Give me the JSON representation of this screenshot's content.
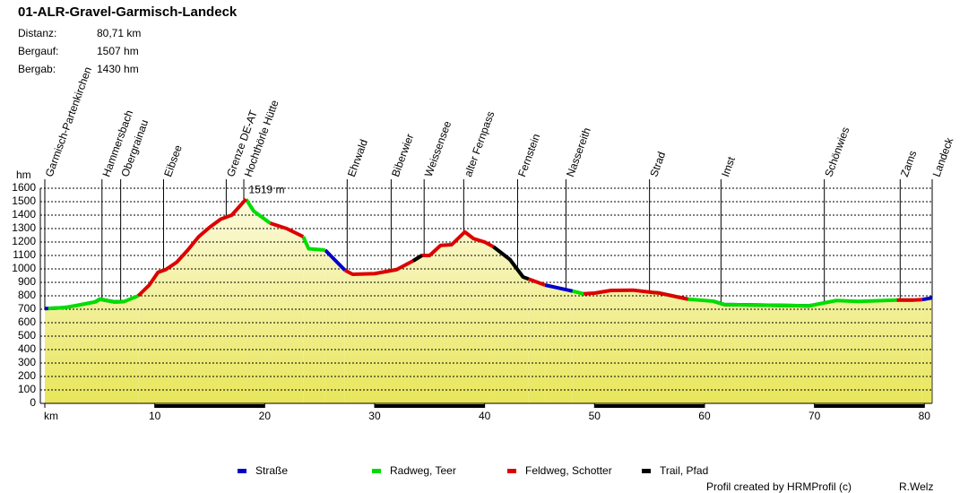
{
  "chart_data": {
    "type": "line",
    "title": "01-ALR-Gravel-Garmisch-Landeck",
    "stats": [
      {
        "label": "Distanz:",
        "value": "80,71 km"
      },
      {
        "label": "Bergauf:",
        "value": "1507 hm"
      },
      {
        "label": "Bergab:",
        "value": "1430 hm"
      }
    ],
    "y_label": "hm",
    "x": [
      0,
      0.3,
      1.7,
      2.0,
      3,
      4.6,
      5.0,
      6.3,
      7.2,
      8.5,
      9.5,
      10.3,
      11.0,
      12,
      13,
      14,
      15,
      16,
      17,
      18.3,
      19,
      20.5,
      22,
      23.5,
      24,
      25.5,
      27.3,
      28,
      30,
      31,
      32,
      33.5,
      34.3,
      35,
      36,
      37,
      38.2,
      39,
      40,
      40.8,
      42.3,
      43.5,
      44,
      45.5,
      48,
      49,
      50,
      51.5,
      53.5,
      55.3,
      55.8,
      58.5,
      60.8,
      61.8,
      69.5,
      69.8,
      72,
      74,
      77.5,
      78,
      79,
      79.8,
      80.71
    ],
    "series": [
      {
        "name": "Straße",
        "color": "#0000cc",
        "values": [
          705,
          706,
          712,
          715,
          null,
          755,
          775,
          755,
          757,
          null,
          null,
          null,
          null,
          null,
          null,
          null,
          null,
          null,
          null,
          null,
          null,
          null,
          null,
          null,
          null,
          1140,
          990,
          null,
          null,
          null,
          null,
          null,
          null,
          null,
          null,
          null,
          null,
          null,
          null,
          null,
          null,
          null,
          null,
          880,
          835,
          null,
          null,
          null,
          null,
          null,
          null,
          null,
          760,
          735,
          725,
          730,
          null,
          null,
          null,
          null,
          null,
          772,
          785
        ]
      },
      {
        "name": "Radweg, Teer",
        "color": "#00dd00",
        "values": [
          null,
          706,
          712,
          715,
          730,
          755,
          775,
          755,
          757,
          800,
          null,
          975,
          995,
          null,
          null,
          null,
          null,
          null,
          null,
          1519,
          1430,
          1340,
          null,
          1240,
          1150,
          1140,
          null,
          null,
          null,
          980,
          995,
          null,
          null,
          null,
          null,
          null,
          null,
          null,
          null,
          null,
          1070,
          940,
          null,
          null,
          835,
          815,
          null,
          null,
          null,
          825,
          822,
          775,
          760,
          735,
          725,
          730,
          765,
          758,
          768,
          768,
          768,
          null,
          null
        ]
      },
      {
        "name": "Feldweg, Schotter",
        "color": "#dd0000",
        "values": [
          null,
          null,
          null,
          null,
          null,
          null,
          null,
          null,
          null,
          800,
          880,
          975,
          995,
          1050,
          1140,
          1240,
          1310,
          1370,
          1400,
          1519,
          null,
          1340,
          1300,
          1240,
          null,
          null,
          990,
          960,
          965,
          980,
          995,
          1060,
          1100,
          1100,
          1175,
          1180,
          1275,
          1225,
          1200,
          1165,
          null,
          null,
          925,
          880,
          null,
          815,
          820,
          840,
          842,
          825,
          822,
          775,
          null,
          null,
          null,
          null,
          null,
          null,
          768,
          768,
          768,
          772,
          null
        ]
      },
      {
        "name": "Trail, Pfad",
        "color": "#000000",
        "values": [
          null,
          null,
          null,
          null,
          null,
          null,
          null,
          null,
          null,
          null,
          null,
          null,
          null,
          null,
          null,
          null,
          null,
          null,
          null,
          null,
          null,
          null,
          null,
          null,
          null,
          null,
          null,
          null,
          null,
          null,
          null,
          1060,
          1100,
          null,
          null,
          null,
          null,
          null,
          null,
          1165,
          1070,
          940,
          925,
          null,
          null,
          null,
          null,
          null,
          null,
          null,
          null,
          null,
          null,
          null,
          null,
          null,
          null,
          null,
          null,
          null,
          null,
          null,
          null
        ]
      }
    ],
    "waypoints": [
      {
        "label": "Garmisch-Partenkirchen",
        "x": 0
      },
      {
        "label": "Hammersbach",
        "x": 5.2
      },
      {
        "label": "Obergrainau",
        "x": 6.9
      },
      {
        "label": "Eibsee",
        "x": 10.8
      },
      {
        "label": "Grenze DE-AT",
        "x": 16.5
      },
      {
        "label": "Hochthörle Hütte",
        "x": 18.1
      },
      {
        "label": "Ehrwald",
        "x": 27.5
      },
      {
        "label": "Biberwier",
        "x": 31.5
      },
      {
        "label": "Weissensee",
        "x": 34.5
      },
      {
        "label": "alter Fernpass",
        "x": 38.1
      },
      {
        "label": "Fernstein",
        "x": 43.0
      },
      {
        "label": "Nassereith",
        "x": 47.4
      },
      {
        "label": "Strad",
        "x": 55.0
      },
      {
        "label": "Imst",
        "x": 61.5
      },
      {
        "label": "Schönwies",
        "x": 70.9
      },
      {
        "label": "Zams",
        "x": 77.8
      },
      {
        "label": "Landeck",
        "x": 80.71
      }
    ],
    "annotations": [
      {
        "text": "1519 m",
        "x": 18.3,
        "y": 1519,
        "color": "#dd0000"
      }
    ],
    "xlim": [
      0,
      80.71
    ],
    "ylim": [
      0,
      1600
    ],
    "xticks": [
      {
        "value": 0,
        "label": "km"
      },
      10,
      20,
      30,
      40,
      50,
      60,
      70,
      80
    ],
    "yticks": [
      0,
      100,
      200,
      300,
      400,
      500,
      600,
      700,
      800,
      900,
      1000,
      1100,
      1200,
      1300,
      1400,
      1500,
      1600
    ],
    "grid": true,
    "legend": "bottom",
    "footer": {
      "left": "Profil created by HRMProfil (c)",
      "right": "R.Welz"
    }
  }
}
